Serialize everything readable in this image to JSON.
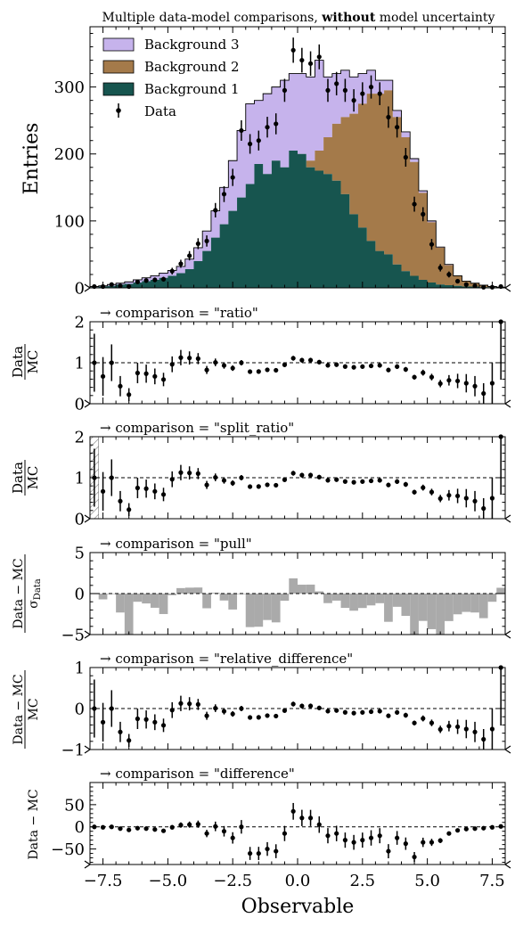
{
  "header": {
    "title_prefix": "Multiple data-model comparisons,",
    "title_bold": "without",
    "title_suffix": "model uncertainty"
  },
  "main": {
    "ylabel": "Entries",
    "yticks": [
      "0",
      "100",
      "200",
      "300"
    ]
  },
  "legend": {
    "items": [
      {
        "label": "Background 3",
        "color": "#c6b3ec"
      },
      {
        "label": "Background 2",
        "color": "#a47a4a"
      },
      {
        "label": "Background 1",
        "color": "#17554f"
      },
      {
        "label": "Data",
        "color": "#000000"
      }
    ]
  },
  "panels": [
    {
      "title": "→ comparison = \"ratio\"",
      "ylabel_num": "Data",
      "ylabel_den": "MC",
      "yticks": [
        "0",
        "1",
        "2"
      ]
    },
    {
      "title": "→ comparison = \"split_ratio\"",
      "ylabel_num": "Data",
      "ylabel_den": "MC",
      "yticks": [
        "0",
        "1",
        "2"
      ]
    },
    {
      "title": "→ comparison = \"pull\"",
      "ylabel_num": "Data − MC",
      "ylabel_den": "σ",
      "ylabel_den_sub": "Data",
      "yticks": [
        "−5",
        "0",
        "5"
      ]
    },
    {
      "title": "→ comparison = \"relative_difference\"",
      "ylabel_num": "Data − MC",
      "ylabel_den": "MC",
      "yticks": [
        "−1",
        "0",
        "1"
      ]
    },
    {
      "title": "→ comparison = \"difference\"",
      "ylabel": "Data − MC",
      "yticks": [
        "−50",
        "0",
        "50"
      ]
    }
  ],
  "xaxis": {
    "label": "Observable",
    "ticks": [
      "−7.5",
      "−5.0",
      "−2.5",
      "0.0",
      "2.5",
      "5.0",
      "7.5"
    ]
  },
  "chart_data": {
    "type": "bar",
    "title": "Multiple data-model comparisons, without model uncertainty",
    "xlabel": "Observable",
    "ylabel": "Entries",
    "xlim": [
      -8,
      8
    ],
    "ylim": [
      0,
      390
    ],
    "bin_edges": [
      -8.0,
      -7.6667,
      -7.3333,
      -7.0,
      -6.6667,
      -6.3333,
      -6.0,
      -5.6667,
      -5.3333,
      -5.0,
      -4.6667,
      -4.3333,
      -4.0,
      -3.6667,
      -3.3333,
      -3.0,
      -2.6667,
      -2.3333,
      -2.0,
      -1.6667,
      -1.3333,
      -1.0,
      -0.6667,
      -0.3333,
      0.0,
      0.3333,
      0.6667,
      1.0,
      1.3333,
      1.6667,
      2.0,
      2.3333,
      2.6667,
      3.0,
      3.3333,
      3.6667,
      4.0,
      4.3333,
      4.6667,
      5.0,
      5.3333,
      5.6667,
      6.0,
      6.3333,
      6.6667,
      7.0,
      7.3333,
      7.6667,
      8.0
    ],
    "series": [
      {
        "name": "Background 1",
        "values": [
          1,
          2,
          3,
          5,
          6,
          8,
          10,
          12,
          15,
          18,
          22,
          28,
          40,
          55,
          75,
          95,
          115,
          135,
          155,
          185,
          170,
          190,
          180,
          205,
          200,
          180,
          175,
          170,
          160,
          140,
          110,
          90,
          70,
          55,
          50,
          35,
          25,
          18,
          12,
          8,
          5,
          4,
          3,
          2,
          2,
          1,
          1,
          1
        ]
      },
      {
        "name": "Background 2",
        "values": [
          0,
          0,
          0,
          0,
          0,
          0,
          0,
          0,
          0,
          0,
          0,
          0,
          0,
          0,
          0,
          0,
          0,
          0,
          0,
          0,
          0,
          0,
          0,
          0,
          0,
          10,
          30,
          55,
          85,
          115,
          150,
          185,
          220,
          235,
          245,
          220,
          200,
          170,
          130,
          90,
          55,
          30,
          15,
          8,
          5,
          3,
          1,
          0
        ]
      },
      {
        "name": "Background 3",
        "values": [
          1,
          1,
          2,
          2,
          3,
          4,
          5,
          6,
          7,
          8,
          10,
          15,
          20,
          30,
          40,
          55,
          75,
          100,
          120,
          95,
          120,
          110,
          130,
          115,
          120,
          125,
          135,
          90,
          75,
          70,
          55,
          45,
          35,
          20,
          15,
          10,
          8,
          5,
          3,
          2,
          1,
          1,
          0,
          0,
          0,
          0,
          0,
          0
        ]
      },
      {
        "name": "Data",
        "values": [
          2,
          2,
          5,
          3,
          2,
          9,
          11,
          12,
          13,
          25,
          36,
          48,
          66,
          70,
          116,
          140,
          165,
          235,
          215,
          220,
          240,
          245,
          295,
          355,
          340,
          335,
          345,
          295,
          305,
          295,
          280,
          290,
          300,
          290,
          255,
          240,
          195,
          125,
          110,
          65,
          30,
          20,
          10,
          5,
          3,
          1,
          1,
          2
        ]
      }
    ]
  }
}
